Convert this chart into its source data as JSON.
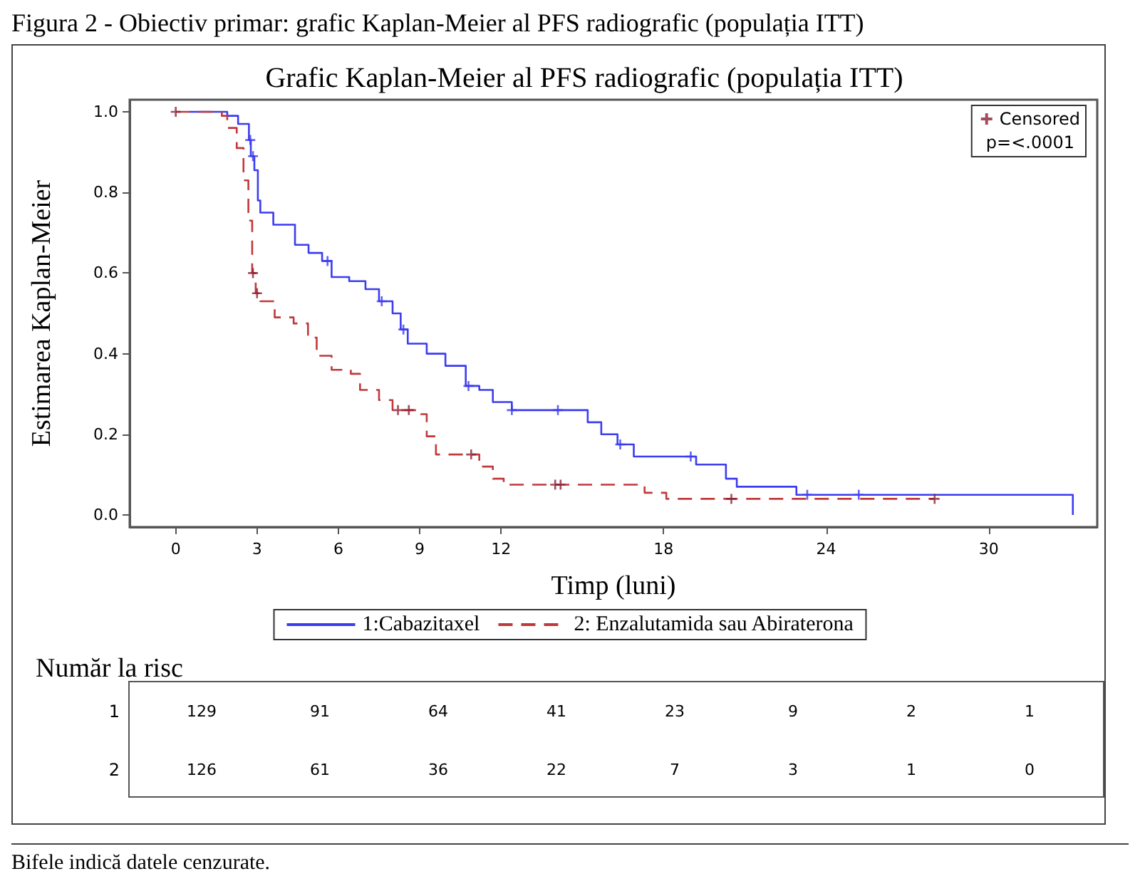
{
  "chart_data": [
    {
      "type": "step",
      "title": "Grafic Kaplan-Meier al PFS radiografic (populația ITT)",
      "xlabel": "Timp (luni)",
      "ylabel": "Estimarea Kaplan-Meier",
      "annotations": [
        "Figura 2 - Obiectiv primar: grafic Kaplan-Meier al PFS radiografic (populația ITT)",
        "p=<.0001",
        "Bifele indică datele cenzurate."
      ],
      "xlim": [
        -1.7,
        34
      ],
      "xticks": [
        0,
        3,
        6,
        9,
        12,
        18,
        24,
        30
      ],
      "ylim": [
        -0.03,
        1.03
      ],
      "yticks": [
        {
          "value": 0,
          "label": "0.0"
        },
        {
          "value": 0.2,
          "label": "0.2"
        },
        {
          "value": 0.4,
          "label": "0.4"
        },
        {
          "value": 0.6,
          "label": "0.6"
        },
        {
          "value": 0.8,
          "label": "0.8"
        },
        {
          "value": 1,
          "label": "1.0"
        }
      ],
      "legend": "bottom",
      "grid": false,
      "series": [
        {
          "name": "1:Cabazitaxel",
          "color": "#3c3cf0",
          "line_style": "solid",
          "marker": "none",
          "x": [
            0.5,
            1.9,
            2.3,
            2.7,
            2.77,
            2.9,
            3.03,
            3.12,
            3.6,
            4.4,
            4.9,
            5.4,
            5.75,
            6.4,
            7.0,
            7.5,
            8.0,
            8.3,
            8.56,
            9.26,
            9.95,
            10.7,
            11.2,
            11.7,
            12.4,
            15.2,
            15.7,
            16.3,
            16.9,
            19.2,
            20.3,
            20.7,
            22.9,
            33.1
          ],
          "values": [
            1.0,
            0.99,
            0.97,
            0.93,
            0.89,
            0.855,
            0.78,
            0.75,
            0.72,
            0.67,
            0.65,
            0.63,
            0.59,
            0.58,
            0.56,
            0.53,
            0.5,
            0.46,
            0.425,
            0.4,
            0.37,
            0.32,
            0.31,
            0.28,
            0.26,
            0.23,
            0.2,
            0.175,
            0.145,
            0.125,
            0.09,
            0.07,
            0.05,
            0.0
          ]
        },
        {
          "name": "2: Enzalutamida sau Abiraterona",
          "color": "#c0393b",
          "line_style": "dashed",
          "marker": "none",
          "x": [
            0,
            1.7,
            1.9,
            2.25,
            2.5,
            2.68,
            2.82,
            2.95,
            3.12,
            3.65,
            4.35,
            4.88,
            5.2,
            5.75,
            6.46,
            6.8,
            7.5,
            8.0,
            8.9,
            9.26,
            9.6,
            11.2,
            11.7,
            12.1,
            17.3,
            18.1,
            28.0
          ],
          "values": [
            1.0,
            0.99,
            0.96,
            0.91,
            0.83,
            0.73,
            0.6,
            0.55,
            0.53,
            0.49,
            0.475,
            0.44,
            0.395,
            0.36,
            0.35,
            0.31,
            0.285,
            0.26,
            0.25,
            0.195,
            0.15,
            0.12,
            0.09,
            0.075,
            0.055,
            0.04,
            0.04
          ]
        },
        {
          "type": "scatter",
          "name": "Censored",
          "color": "#8b2035",
          "marker": "cross",
          "x": [
            0,
            2.85,
            3.0,
            8.2,
            8.6,
            10.9,
            14.0,
            14.2,
            20.5,
            28.0
          ],
          "values": [
            1.0,
            0.6,
            0.55,
            0.26,
            0.26,
            0.15,
            0.075,
            0.075,
            0.04,
            0.04
          ]
        },
        {
          "type": "scatter",
          "color": "#3c3cf0",
          "marker": "cross",
          "x": [
            2.75,
            2.85,
            5.6,
            7.6,
            8.4,
            10.8,
            12.4,
            14.1,
            16.4,
            19.0,
            23.3,
            25.2
          ],
          "values": [
            0.93,
            0.89,
            0.63,
            0.53,
            0.46,
            0.32,
            0.26,
            0.26,
            0.175,
            0.145,
            0.05,
            0.05
          ]
        }
      ]
    },
    {
      "type": "heatmap",
      "title": "Număr la risc",
      "data_labels": true,
      "tick_labels": "y",
      "categories": [
        null,
        null,
        null,
        null,
        null,
        null,
        null,
        null
      ],
      "y_categories": [
        "1",
        "2"
      ],
      "cells": [
        [
          129,
          91,
          64,
          41,
          23,
          9,
          2,
          1
        ],
        [
          126,
          61,
          36,
          22,
          7,
          3,
          1,
          0
        ]
      ]
    }
  ]
}
